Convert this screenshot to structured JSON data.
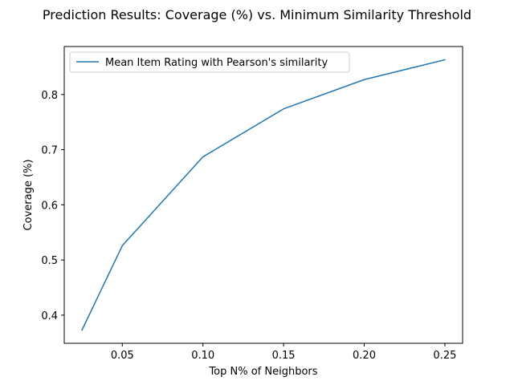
{
  "chart_data": {
    "type": "line",
    "title": "Prediction Results: Coverage (%) vs. Minimum Similarity Threshold",
    "xlabel": "Top N% of Neighbors",
    "ylabel": "Coverage (%)",
    "xlim": [
      0.014,
      0.261
    ],
    "ylim": [
      0.349,
      0.887
    ],
    "xticks": [
      0.05,
      0.1,
      0.15,
      0.2,
      0.25
    ],
    "xtick_labels": [
      "0.05",
      "0.10",
      "0.15",
      "0.20",
      "0.25"
    ],
    "yticks": [
      0.4,
      0.5,
      0.6,
      0.7,
      0.8
    ],
    "ytick_labels": [
      "0.4",
      "0.5",
      "0.6",
      "0.7",
      "0.8"
    ],
    "grid": false,
    "legend_position": "top-left",
    "series": [
      {
        "name": "Mean Item Rating with Pearson's similarity",
        "color": "#1f77b4",
        "x": [
          0.025,
          0.05,
          0.1,
          0.15,
          0.2,
          0.25
        ],
        "y": [
          0.373,
          0.526,
          0.687,
          0.774,
          0.827,
          0.863
        ]
      }
    ]
  }
}
